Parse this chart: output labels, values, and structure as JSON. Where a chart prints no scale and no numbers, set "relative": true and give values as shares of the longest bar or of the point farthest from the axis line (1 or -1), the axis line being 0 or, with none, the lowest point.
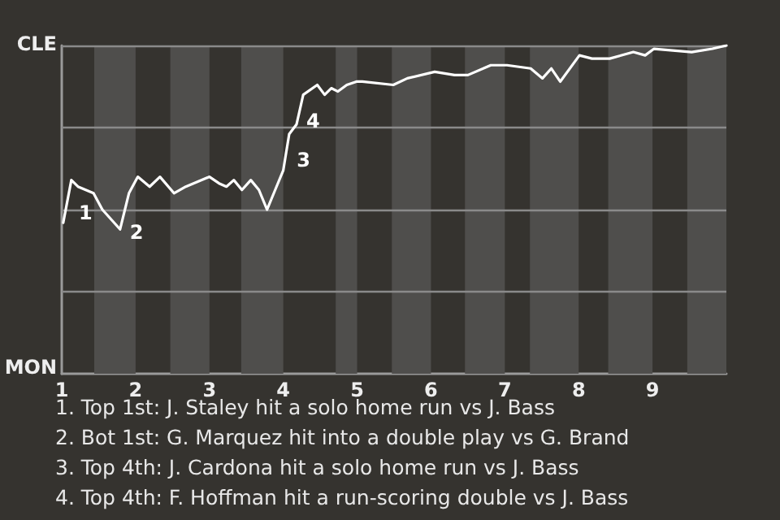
{
  "chart_data": {
    "type": "line",
    "relative": true,
    "x": [
      1.02,
      1.13,
      1.22,
      1.43,
      1.55,
      1.79,
      1.91,
      2.03,
      2.19,
      2.33,
      2.52,
      2.68,
      3.0,
      3.13,
      3.23,
      3.33,
      3.44,
      3.56,
      3.67,
      3.78,
      3.89,
      4.0,
      4.08,
      4.18,
      4.27,
      4.46,
      4.56,
      4.65,
      4.74,
      4.86,
      4.99,
      5.07,
      5.49,
      5.68,
      6.05,
      6.32,
      6.5,
      6.81,
      7.03,
      7.35,
      7.51,
      7.63,
      7.75,
      8.01,
      8.18,
      8.42,
      8.74,
      8.9,
      9.02,
      9.53,
      9.81,
      10.0
    ],
    "series": [
      {
        "color": "#ffffff",
        "values": [
          0.46,
          0.59,
          0.57,
          0.55,
          0.5,
          0.44,
          0.55,
          0.6,
          0.57,
          0.6,
          0.55,
          0.57,
          0.6,
          0.58,
          0.57,
          0.59,
          0.56,
          0.59,
          0.56,
          0.5,
          0.56,
          0.62,
          0.73,
          0.76,
          0.85,
          0.88,
          0.85,
          0.87,
          0.86,
          0.88,
          0.89,
          0.89,
          0.88,
          0.9,
          0.92,
          0.91,
          0.91,
          0.94,
          0.94,
          0.93,
          0.9,
          0.93,
          0.89,
          0.97,
          0.96,
          0.96,
          0.98,
          0.97,
          0.99,
          0.98,
          0.99,
          1.0
        ]
      }
    ],
    "xlim": [
      1,
      10
    ],
    "xticks": [
      1,
      2,
      3,
      4,
      5,
      6,
      7,
      8,
      9
    ],
    "marker": "none",
    "line_style": "solid",
    "ref_lines": [
      {
        "axis": "y",
        "value": 0.25,
        "color": "#8a8a8a"
      },
      {
        "axis": "y",
        "value": 0.5,
        "color": "#8a8a8a"
      },
      {
        "axis": "y",
        "value": 0.75,
        "color": "#8a8a8a"
      },
      {
        "axis": "y",
        "value": 1,
        "color": "#8a8a8a"
      }
    ],
    "bands": [
      {
        "axis": "x",
        "from": 1.44,
        "to": 2,
        "color": "#4f4e4c"
      },
      {
        "axis": "x",
        "from": 2.47,
        "to": 3,
        "color": "#4f4e4c"
      },
      {
        "axis": "x",
        "from": 3.43,
        "to": 4,
        "color": "#4f4e4c"
      },
      {
        "axis": "x",
        "from": 4.71,
        "to": 5,
        "color": "#4f4e4c"
      },
      {
        "axis": "x",
        "from": 5.47,
        "to": 6,
        "color": "#4f4e4c"
      },
      {
        "axis": "x",
        "from": 6.46,
        "to": 7,
        "color": "#4f4e4c"
      },
      {
        "axis": "x",
        "from": 7.34,
        "to": 8,
        "color": "#4f4e4c"
      },
      {
        "axis": "x",
        "from": 8.4,
        "to": 9,
        "color": "#4f4e4c"
      },
      {
        "axis": "x",
        "from": 9.47,
        "to": 10,
        "color": "#4f4e4c"
      }
    ],
    "annotations": [
      "CLE",
      "MON",
      {
        "text": "1",
        "x": 1.1,
        "y": 0.5
      },
      {
        "text": "2",
        "x": 1.79,
        "y": 0.44
      },
      {
        "text": "3",
        "x": 4.05,
        "y": 0.66
      },
      {
        "text": "4",
        "x": 4.18,
        "y": 0.78
      },
      "1. Top 1st: J. Staley hit a solo home run vs J. Bass",
      "2. Bot 1st: G. Marquez hit into a double play vs G. Brand",
      "3. Top 4th: J. Cardona hit a solo home run vs J. Bass",
      "4. Top 4th: F. Hoffman hit a run-scoring double vs J. Bass"
    ]
  }
}
